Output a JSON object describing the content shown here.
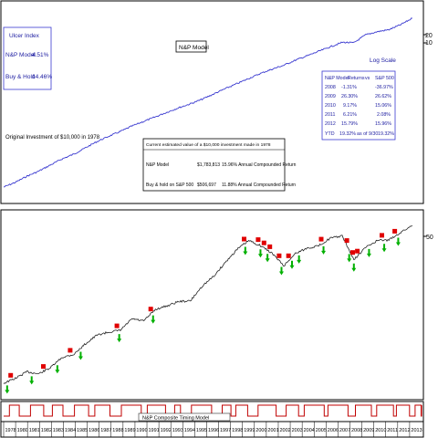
{
  "top_panel": {
    "ulcer": {
      "title": "Ulcer Index",
      "model_label": "N&P Model",
      "model_value": "4.51%",
      "bh_label": "Buy & Hold",
      "bh_value": "14.46%"
    },
    "title": "N&P Model",
    "y_ticks": [
      "20",
      "10"
    ],
    "log_scale_label": "Log Scale",
    "original_investment": "Original Investment of $10,000 in 1978",
    "returns_table": {
      "headers": [
        "N&P Model",
        "Returns",
        "vs",
        "S&P 500"
      ],
      "rows": [
        {
          "year": "2008",
          "model": "-1.31%",
          "sp": "-36.97%"
        },
        {
          "year": "2009",
          "model": "26.30%",
          "sp": "26.62%"
        },
        {
          "year": "2010",
          "model": "9.17%",
          "sp": "15.06%"
        },
        {
          "year": "2011",
          "model": "6.21%",
          "sp": "2.08%"
        },
        {
          "year": "2012",
          "model": "15.79%",
          "sp": "15.96%"
        },
        {
          "year": "YTD",
          "model": "19.32%",
          "note": "as of 9/30",
          "sp": "19.32%"
        }
      ]
    },
    "value_table": {
      "title": "Current estimated value of a $10,000 investment made in 1978",
      "rows": [
        {
          "label": "N&P Model",
          "value": "$1,783,813",
          "cagr": "15.96% Annual Compounded Return"
        },
        {
          "label": "Buy & hold on S&P 500",
          "value": "$506,697",
          "cagr": "11.88% Annual Compounded Return"
        }
      ]
    }
  },
  "bottom_panel": {
    "y_tick": "50",
    "timing_label": "N&P Composite Timing Model"
  },
  "x_axis_years": [
    "1978",
    "1980",
    "1981",
    "1982",
    "1983",
    "1984",
    "1985",
    "1986",
    "1987",
    "1988",
    "1989",
    "1990",
    "1991",
    "1992",
    "1993",
    "1994",
    "1995",
    "1996",
    "1997",
    "1998",
    "1999",
    "2000",
    "2001",
    "2002",
    "2003",
    "2004",
    "2005",
    "2006",
    "2007",
    "2008",
    "2009",
    "2010",
    "2011",
    "2012",
    "2013"
  ],
  "colors": {
    "model_line": "#3a3ad0",
    "index_line": "#222222",
    "sell_marker": "#e00000",
    "buy_marker": "#00b000",
    "timing_line": "#c00000",
    "text_blue": "#1a1aa0"
  },
  "chart_data": [
    {
      "type": "line",
      "yscale": "log",
      "series": [
        {
          "name": "N&P Model",
          "x": [
            1978,
            1979,
            1980,
            1981,
            1982,
            1983,
            1984,
            1985,
            1986,
            1987,
            1988,
            1989,
            1990,
            1991,
            1992,
            1993,
            1994,
            1995,
            1996,
            1997,
            1998,
            1999,
            2000,
            2001,
            2002,
            2003,
            2004,
            2005,
            2006,
            2007,
            2008,
            2009,
            2010,
            2011,
            2012,
            2013
          ],
          "values": [
            10000,
            11500,
            13800,
            16000,
            19200,
            23000,
            26500,
            32000,
            38500,
            45000,
            52000,
            61000,
            70000,
            80000,
            92000,
            105000,
            118000,
            135000,
            158000,
            185000,
            215000,
            250000,
            290000,
            330000,
            370000,
            430000,
            490000,
            560000,
            640000,
            730000,
            720000,
            910000,
            1000000,
            1060000,
            1230000,
            1490000
          ]
        }
      ]
    },
    {
      "type": "line",
      "yscale": "log",
      "series": [
        {
          "x": [
            1978,
            1979,
            1980,
            1981,
            1982,
            1983,
            1984,
            1985,
            1986,
            1987,
            1988,
            1989,
            1990,
            1991,
            1992,
            1993,
            1994,
            1995,
            1996,
            1997,
            1998,
            1999,
            2000,
            2001,
            2002,
            2003,
            2004,
            2005,
            2006,
            2007,
            2008,
            2009,
            2010,
            2011,
            2012,
            2013
          ],
          "values": [
            10000,
            11000,
            12500,
            12000,
            13500,
            16500,
            17500,
            21500,
            25500,
            27000,
            28000,
            35000,
            33500,
            42000,
            45000,
            49000,
            49500,
            66000,
            80000,
            105000,
            135000,
            160000,
            145000,
            125000,
            98000,
            125000,
            138000,
            145000,
            168000,
            175000,
            110000,
            140000,
            160000,
            162000,
            187000,
            215000
          ]
        }
      ],
      "markers": {
        "sell": [
          1978.6,
          1981.4,
          1983.7,
          1987.7,
          1990.6,
          1998.6,
          1999.8,
          2000.3,
          2000.8,
          2001.6,
          2002.4,
          2005.2,
          2007.4,
          2007.9,
          2008.3,
          2010.4,
          2011.5
        ],
        "buy": [
          1978.3,
          1980.4,
          1982.6,
          1984.6,
          1987.9,
          1990.8,
          1998.7,
          2000.0,
          2000.6,
          2001.8,
          2002.7,
          2003.3,
          2005.4,
          2007.6,
          2008.0,
          2009.3,
          2010.6,
          2011.8
        ]
      }
    }
  ]
}
